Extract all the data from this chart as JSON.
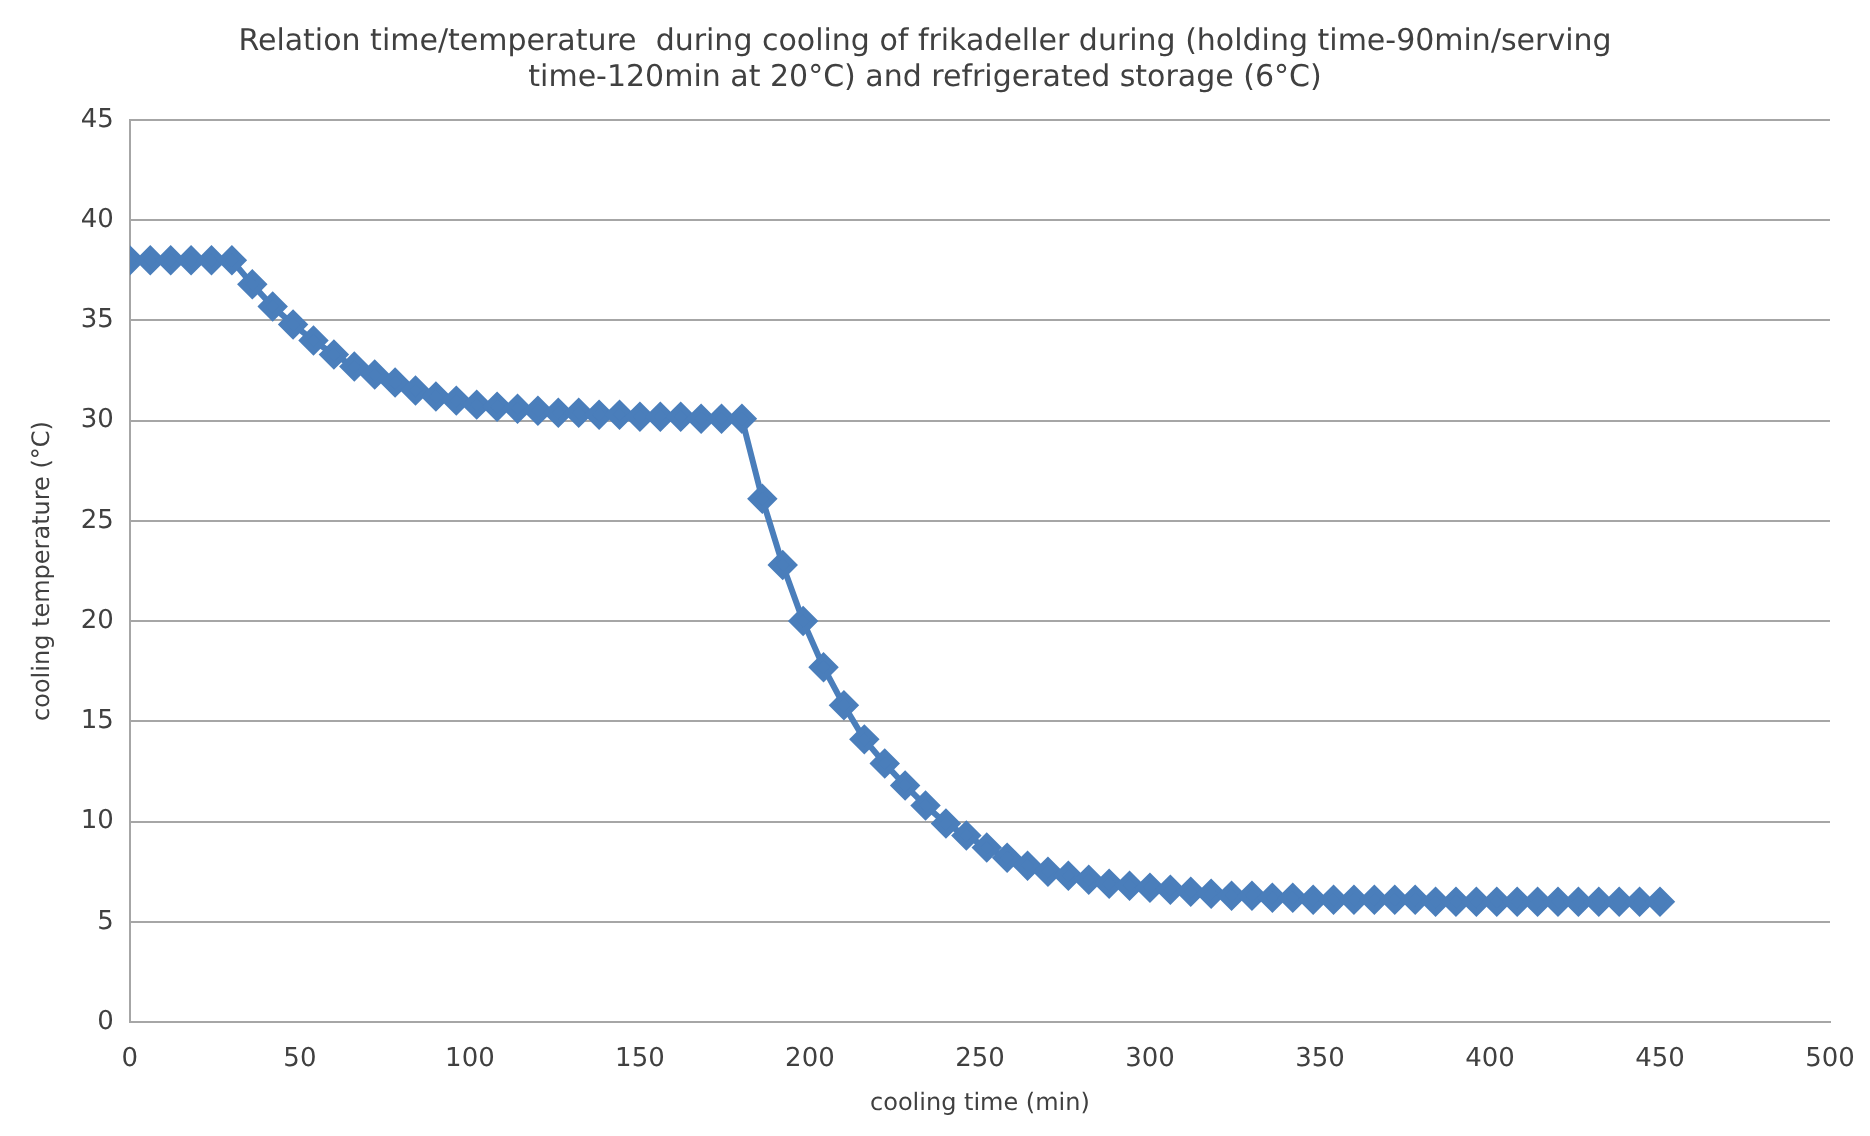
{
  "chart_data": {
    "type": "line",
    "title": "Relation time/temperature  during cooling of frikadeller during (holding time-90min/serving time-120min at 20°C) and refrigerated storage (6°C)",
    "xlabel": "cooling time (min)",
    "ylabel": "cooling temperature (°C)",
    "x": [
      0,
      6,
      12,
      18,
      24,
      30,
      36,
      42,
      48,
      54,
      60,
      66,
      72,
      78,
      84,
      90,
      96,
      102,
      108,
      114,
      120,
      126,
      132,
      138,
      144,
      150,
      156,
      162,
      168,
      174,
      180,
      186,
      192,
      198,
      204,
      210,
      216,
      222,
      228,
      234,
      240,
      246,
      252,
      258,
      264,
      270,
      276,
      282,
      288,
      294,
      300,
      306,
      312,
      318,
      324,
      330,
      336,
      342,
      348,
      354,
      360,
      366,
      372,
      378,
      384,
      390,
      396,
      402,
      408,
      414,
      420,
      426,
      432,
      438,
      444,
      450
    ],
    "series": [
      {
        "color": "#4a7ebb",
        "values": [
          38,
          38,
          38,
          38,
          38,
          38,
          36.8,
          35.7,
          34.8,
          34.0,
          33.3,
          32.7,
          32.3,
          31.9,
          31.5,
          31.2,
          31.0,
          30.8,
          30.7,
          30.6,
          30.5,
          30.4,
          30.4,
          30.3,
          30.3,
          30.2,
          30.2,
          30.2,
          30.1,
          30.1,
          30.1,
          26.1,
          22.8,
          20.0,
          17.7,
          15.8,
          14.1,
          12.9,
          11.8,
          10.8,
          9.9,
          9.3,
          8.7,
          8.2,
          7.8,
          7.5,
          7.3,
          7.1,
          6.9,
          6.8,
          6.7,
          6.6,
          6.5,
          6.4,
          6.3,
          6.3,
          6.2,
          6.2,
          6.1,
          6.1,
          6.1,
          6.1,
          6.1,
          6.1,
          6.0,
          6.0,
          6.0,
          6.0,
          6.0,
          6.0,
          6.0,
          6.0,
          6.0,
          6.0,
          6.0,
          6.0
        ]
      }
    ],
    "xlim": [
      0,
      500
    ],
    "xticks": [
      0,
      50,
      100,
      150,
      200,
      250,
      300,
      350,
      400,
      450,
      500
    ],
    "ylim": [
      0,
      45
    ],
    "yticks": [
      0,
      5,
      10,
      15,
      20,
      25,
      30,
      35,
      40,
      45
    ],
    "grid": "y",
    "legend": false,
    "marker": "diamond",
    "line_style": "solid"
  }
}
